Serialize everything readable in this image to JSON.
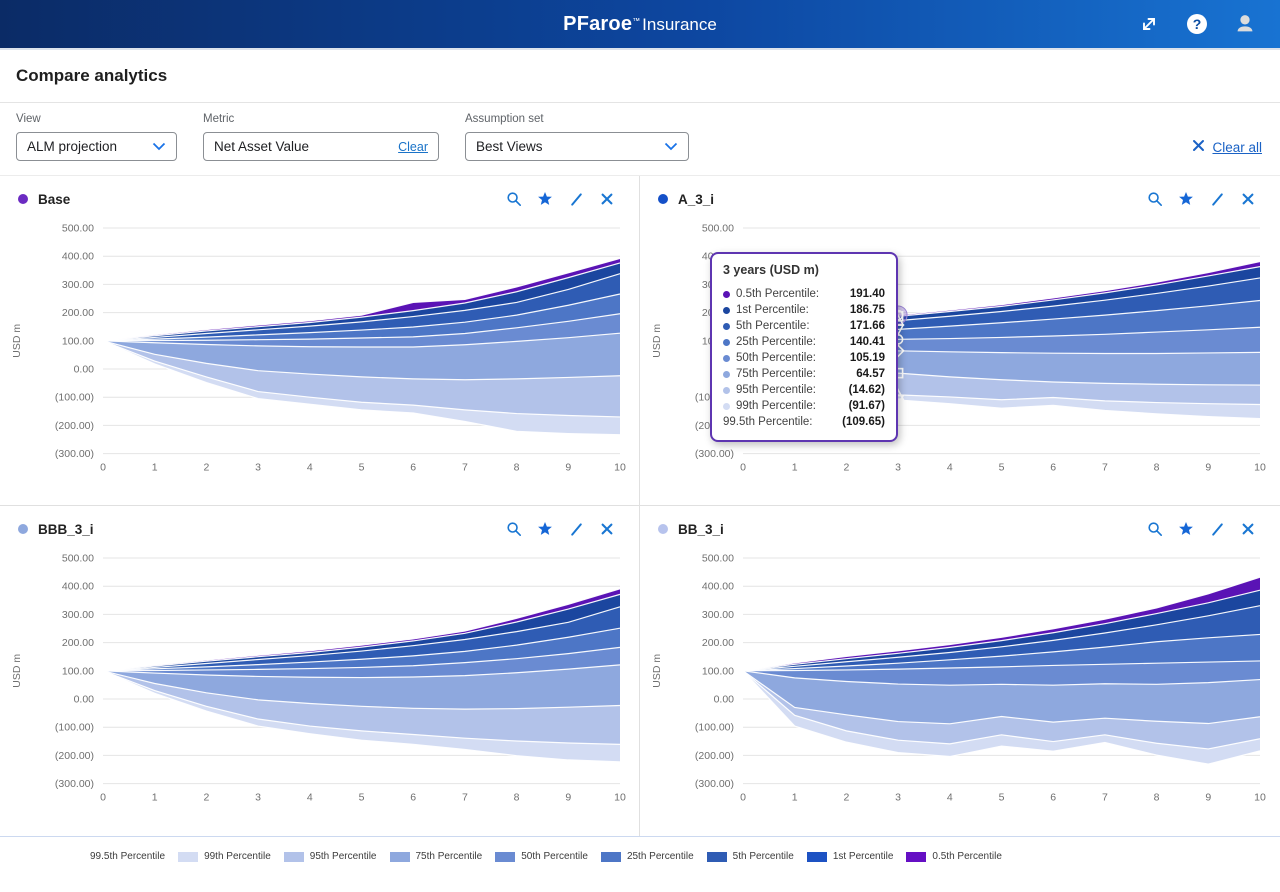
{
  "header": {
    "brand_bold": "PFaroe",
    "brand_tm": "™",
    "brand_rest": "Insurance",
    "icons": [
      "expand-icon",
      "help-icon",
      "user-icon"
    ]
  },
  "page_title": "Compare analytics",
  "filters": {
    "view": {
      "label": "View",
      "value": "ALM projection"
    },
    "metric": {
      "label": "Metric",
      "value": "Net Asset Value",
      "clear_label": "Clear"
    },
    "assumption_set": {
      "label": "Assumption set",
      "value": "Best Views"
    },
    "clear_all_label": "Clear all"
  },
  "panel_action_icons": [
    "search-icon",
    "star-icon",
    "edit-icon",
    "close-icon"
  ],
  "axes": {
    "y_title": "USD m",
    "y_ticks": [
      "500.00",
      "400.00",
      "300.00",
      "200.00",
      "100.00",
      "0.00",
      "(100.00)",
      "(200.00)",
      "(300.00)"
    ],
    "y_tick_values": [
      500,
      400,
      300,
      200,
      100,
      0,
      -100,
      -200,
      -300
    ],
    "x_ticks": [
      "0",
      "1",
      "2",
      "3",
      "4",
      "5",
      "6",
      "7",
      "8",
      "9",
      "10"
    ],
    "ylim": [
      -300,
      500
    ],
    "grid": "horizontal-only"
  },
  "palette": {
    "band_fills": [
      "#5a13b5",
      "#1b469f",
      "#2f5cb4",
      "#4d76c6",
      "#6a8bd2",
      "#8ea8de",
      "#b2c2e9",
      "#d3dcf3"
    ],
    "boundary_stroke": "#ffffff",
    "gridline": "#e4e4e4",
    "tick_text": "#6f6f6f",
    "accent_blue": "#1976d2"
  },
  "tooltip": {
    "title": "3 years (USD m)",
    "attached_chart": "A_3_i",
    "at_x": 3,
    "rows": [
      {
        "label": "0.5th Percentile:",
        "value": "191.40",
        "dot": "#5a13b5"
      },
      {
        "label": "1st Percentile:",
        "value": "186.75",
        "dot": "#1b469f"
      },
      {
        "label": "5th Percentile:",
        "value": "171.66",
        "dot": "#2f5cb4"
      },
      {
        "label": "25th Percentile:",
        "value": "140.41",
        "dot": "#4d76c6"
      },
      {
        "label": "50th Percentile:",
        "value": "105.19",
        "dot": "#6a8bd2"
      },
      {
        "label": "75th Percentile:",
        "value": "64.57",
        "dot": "#8ea8de"
      },
      {
        "label": "95th Percentile:",
        "value": "(14.62)",
        "dot": "#b2c2e9"
      },
      {
        "label": "99th Percentile:",
        "value": "(91.67)",
        "dot": "#d3dcf3"
      },
      {
        "label": "99.5th Percentile:",
        "value": "(109.65)",
        "dot": null
      }
    ]
  },
  "legend": {
    "position": "bottom-center",
    "items": [
      {
        "label": "99.5th Percentile",
        "color": "#ffffff"
      },
      {
        "label": "99th Percentile",
        "color": "#d3dcf3"
      },
      {
        "label": "95th Percentile",
        "color": "#b2c2e9"
      },
      {
        "label": "75th Percentile",
        "color": "#8ea8de"
      },
      {
        "label": "50th Percentile",
        "color": "#6a8bd2"
      },
      {
        "label": "25th Percentile",
        "color": "#4d76c6"
      },
      {
        "label": "5th Percentile",
        "color": "#2f5cb4"
      },
      {
        "label": "1st Percentile",
        "color": "#1d52c3"
      },
      {
        "label": "0.5th Percentile",
        "color": "#650fc4"
      }
    ]
  },
  "chart_data": [
    {
      "type": "area",
      "title": "Base",
      "dot_color": "#6b2bc2",
      "xlabel": "",
      "ylabel": "USD m",
      "x": [
        0,
        1,
        2,
        3,
        4,
        5,
        6,
        7,
        8,
        9,
        10
      ],
      "ylim": [
        -300,
        500
      ],
      "series": [
        {
          "name": "0.5th Percentile",
          "values": [
            100,
            122,
            140,
            156,
            171,
            191,
            236,
            247,
            291,
            341,
            392
          ]
        },
        {
          "name": "1st Percentile",
          "values": [
            100,
            118,
            135,
            150,
            165,
            184,
            207,
            234,
            274,
            324,
            376
          ]
        },
        {
          "name": "5th Percentile",
          "values": [
            100,
            112,
            126,
            139,
            152,
            167,
            186,
            208,
            236,
            282,
            338
          ]
        },
        {
          "name": "25th Percentile",
          "values": [
            100,
            106,
            113,
            121,
            129,
            138,
            149,
            166,
            191,
            226,
            266
          ]
        },
        {
          "name": "50th Percentile",
          "values": [
            100,
            101,
            102,
            104,
            106,
            110,
            114,
            126,
            146,
            169,
            196
          ]
        },
        {
          "name": "75th Percentile",
          "values": [
            100,
            93,
            87,
            82,
            79,
            78,
            78,
            86,
            98,
            111,
            127
          ]
        },
        {
          "name": "95th Percentile",
          "values": [
            100,
            52,
            20,
            -6,
            -18,
            -28,
            -35,
            -38,
            -35,
            -30,
            -24
          ]
        },
        {
          "name": "99th Percentile",
          "values": [
            100,
            28,
            -28,
            -80,
            -100,
            -118,
            -128,
            -145,
            -158,
            -165,
            -170
          ]
        },
        {
          "name": "99.5th Percentile",
          "values": [
            100,
            18,
            -48,
            -105,
            -125,
            -145,
            -156,
            -186,
            -221,
            -229,
            -233
          ]
        }
      ]
    },
    {
      "type": "area",
      "title": "A_3_i",
      "dot_color": "#1450c8",
      "xlabel": "",
      "ylabel": "USD m",
      "x": [
        0,
        1,
        2,
        3,
        4,
        5,
        6,
        7,
        8,
        9,
        10
      ],
      "ylim": [
        -300,
        500
      ],
      "hover": {
        "x": 3,
        "marker_shapes": [
          "circle",
          "square",
          "triangle",
          "triangle-down",
          "circle",
          "diamond",
          "square",
          "triangle",
          "triangle-down"
        ]
      },
      "series": [
        {
          "name": "0.5th Percentile",
          "values": [
            100,
            131,
            161,
            191.4,
            209,
            228,
            252,
            278,
            308,
            342,
            381
          ]
        },
        {
          "name": "1st Percentile",
          "values": [
            100,
            128,
            158,
            186.75,
            204,
            222,
            245,
            270,
            298,
            330,
            363
          ]
        },
        {
          "name": "5th Percentile",
          "values": [
            100,
            124,
            148,
            171.66,
            187,
            204,
            223,
            244,
            268,
            294,
            323
          ]
        },
        {
          "name": "25th Percentile",
          "values": [
            100,
            113,
            127,
            140.41,
            152,
            164,
            177,
            191,
            207,
            224,
            243
          ]
        },
        {
          "name": "50th Percentile",
          "values": [
            100,
            101.5,
            103.5,
            105.19,
            108,
            112,
            117,
            123,
            131,
            139,
            148
          ]
        },
        {
          "name": "75th Percentile",
          "values": [
            100,
            88,
            76,
            64.57,
            61,
            58,
            56,
            55,
            55,
            57,
            59
          ]
        },
        {
          "name": "95th Percentile",
          "values": [
            100,
            62,
            22,
            -14.62,
            -28,
            -38,
            -46,
            -51,
            -54,
            -56,
            -57
          ]
        },
        {
          "name": "99th Percentile",
          "values": [
            100,
            38,
            -30,
            -91.67,
            -99,
            -109,
            -101,
            -113,
            -119,
            -123,
            -126
          ]
        },
        {
          "name": "99.5th Percentile",
          "values": [
            100,
            30,
            -46,
            -109.65,
            -123,
            -139,
            -129,
            -147,
            -159,
            -169,
            -176
          ]
        }
      ]
    },
    {
      "type": "area",
      "title": "BBB_3_i",
      "dot_color": "#8ea8de",
      "xlabel": "",
      "ylabel": "USD m",
      "x": [
        0,
        1,
        2,
        3,
        4,
        5,
        6,
        7,
        8,
        9,
        10
      ],
      "ylim": [
        -300,
        500
      ],
      "series": [
        {
          "name": "0.5th Percentile",
          "values": [
            100,
            120,
            138,
            155,
            171,
            191,
            213,
            241,
            286,
            336,
            391
          ]
        },
        {
          "name": "1st Percentile",
          "values": [
            100,
            117,
            134,
            150,
            165,
            184,
            206,
            233,
            273,
            319,
            371
          ]
        },
        {
          "name": "5th Percentile",
          "values": [
            100,
            112,
            126,
            140,
            154,
            170,
            189,
            211,
            239,
            272,
            327
          ]
        },
        {
          "name": "25th Percentile",
          "values": [
            100,
            107,
            114,
            122,
            131,
            141,
            153,
            169,
            191,
            219,
            251
          ]
        },
        {
          "name": "50th Percentile",
          "values": [
            100,
            101,
            103,
            105,
            108,
            112,
            118,
            129,
            143,
            161,
            183
          ]
        },
        {
          "name": "75th Percentile",
          "values": [
            100,
            92,
            85,
            80,
            77,
            76,
            78,
            83,
            93,
            106,
            121
          ]
        },
        {
          "name": "95th Percentile",
          "values": [
            100,
            55,
            22,
            -3,
            -16,
            -26,
            -33,
            -36,
            -34,
            -29,
            -23
          ]
        },
        {
          "name": "99th Percentile",
          "values": [
            100,
            30,
            -26,
            -71,
            -96,
            -113,
            -126,
            -139,
            -149,
            -156,
            -161
          ]
        },
        {
          "name": "99.5th Percentile",
          "values": [
            100,
            20,
            -43,
            -96,
            -123,
            -146,
            -161,
            -179,
            -201,
            -216,
            -223
          ]
        }
      ]
    },
    {
      "type": "area",
      "title": "BB_3_i",
      "dot_color": "#b7c3ed",
      "xlabel": "",
      "ylabel": "USD m",
      "x": [
        0,
        1,
        2,
        3,
        4,
        5,
        6,
        7,
        8,
        9,
        10
      ],
      "ylim": [
        -300,
        500
      ],
      "series": [
        {
          "name": "0.5th Percentile",
          "values": [
            100,
            128,
            151,
            171,
            193,
            219,
            249,
            283,
            323,
            373,
            432
          ]
        },
        {
          "name": "1st Percentile",
          "values": [
            100,
            123,
            143,
            162,
            183,
            207,
            235,
            267,
            303,
            341,
            386
          ]
        },
        {
          "name": "5th Percentile",
          "values": [
            100,
            116,
            132,
            148,
            165,
            185,
            208,
            234,
            263,
            295,
            331
          ]
        },
        {
          "name": "25th Percentile",
          "values": [
            100,
            108,
            117,
            127,
            139,
            152,
            167,
            184,
            203,
            217,
            229
          ]
        },
        {
          "name": "50th Percentile",
          "values": [
            100,
            101,
            103,
            106,
            110,
            114,
            119,
            123,
            127,
            131,
            135
          ]
        },
        {
          "name": "75th Percentile",
          "values": [
            100,
            75,
            62,
            53,
            49,
            52,
            49,
            54,
            52,
            58,
            69
          ]
        },
        {
          "name": "95th Percentile",
          "values": [
            100,
            -30,
            -56,
            -80,
            -88,
            -62,
            -82,
            -68,
            -79,
            -87,
            -63
          ]
        },
        {
          "name": "99th Percentile",
          "values": [
            100,
            -58,
            -113,
            -146,
            -159,
            -127,
            -151,
            -127,
            -157,
            -177,
            -141
          ]
        },
        {
          "name": "99.5th Percentile",
          "values": [
            100,
            -96,
            -153,
            -190,
            -204,
            -167,
            -185,
            -154,
            -199,
            -231,
            -184
          ]
        }
      ]
    }
  ]
}
